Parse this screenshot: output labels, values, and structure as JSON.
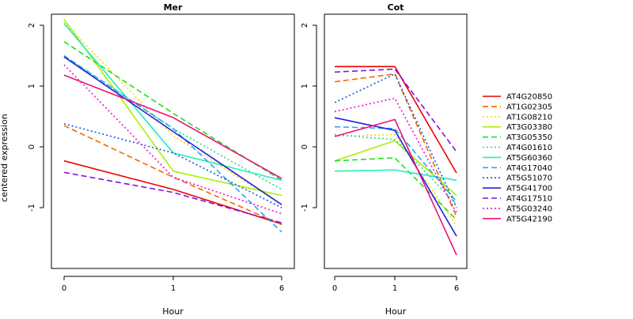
{
  "ylabel": "centered expression",
  "chart_data": [
    {
      "type": "line",
      "title": "Mer",
      "xlabel": "Hour",
      "x": [
        0,
        1,
        6
      ],
      "ylim": [
        -2,
        2.2
      ],
      "yticks": [
        -1,
        0,
        1,
        2
      ],
      "grid": false,
      "series": [
        {
          "name": "AT4G20850",
          "color": "#ee0000",
          "dash": "solid",
          "values": [
            -0.23,
            -0.7,
            -1.27
          ]
        },
        {
          "name": "AT1G02305",
          "color": "#ee6a00",
          "dash": "dashed",
          "values": [
            0.35,
            -0.5,
            -1.28
          ]
        },
        {
          "name": "AT1G08210",
          "color": "#ffd400",
          "dash": "dotted",
          "values": [
            2.05,
            0.18,
            -0.95
          ]
        },
        {
          "name": "AT3G03380",
          "color": "#aaee00",
          "dash": "solid",
          "values": [
            2.1,
            -0.4,
            -0.8
          ]
        },
        {
          "name": "AT3G05350",
          "color": "#22dd22",
          "dash": "dashed",
          "values": [
            1.73,
            0.55,
            -0.55
          ]
        },
        {
          "name": "AT4G01610",
          "color": "#22dd77",
          "dash": "dotted",
          "values": [
            1.5,
            0.3,
            -0.7
          ]
        },
        {
          "name": "AT5G60360",
          "color": "#22eebb",
          "dash": "solid",
          "values": [
            2.03,
            -0.1,
            -0.55
          ]
        },
        {
          "name": "AT4G17040",
          "color": "#22aaee",
          "dash": "dashed",
          "values": [
            1.5,
            0.3,
            -1.4
          ]
        },
        {
          "name": "AT5G51070",
          "color": "#1155dd",
          "dash": "dotted",
          "values": [
            0.38,
            -0.1,
            -1.0
          ]
        },
        {
          "name": "AT5G41700",
          "color": "#2222dd",
          "dash": "solid",
          "values": [
            1.48,
            0.25,
            -0.95
          ]
        },
        {
          "name": "AT4G17510",
          "color": "#8811dd",
          "dash": "dashed",
          "values": [
            -0.42,
            -0.75,
            -1.25
          ]
        },
        {
          "name": "AT5G03240",
          "color": "#ee11cc",
          "dash": "dotted",
          "values": [
            1.35,
            -0.5,
            -1.1
          ]
        },
        {
          "name": "AT5G42190",
          "color": "#ee1177",
          "dash": "solid",
          "values": [
            1.18,
            0.48,
            -0.52
          ]
        }
      ]
    },
    {
      "type": "line",
      "title": "Cot",
      "xlabel": "Hour",
      "x": [
        0,
        1,
        6
      ],
      "ylim": [
        -2,
        2.2
      ],
      "yticks": [
        -1,
        0,
        1,
        2
      ],
      "grid": false,
      "series": [
        {
          "name": "AT4G20850",
          "color": "#ee0000",
          "dash": "solid",
          "values": [
            1.32,
            1.32,
            -0.43
          ]
        },
        {
          "name": "AT1G02305",
          "color": "#ee6a00",
          "dash": "dashed",
          "values": [
            1.07,
            1.2,
            -1.15
          ]
        },
        {
          "name": "AT1G08210",
          "color": "#ffd400",
          "dash": "dotted",
          "values": [
            0.18,
            0.2,
            -1.3
          ]
        },
        {
          "name": "AT3G03380",
          "color": "#aaee00",
          "dash": "solid",
          "values": [
            -0.23,
            0.1,
            -0.8
          ]
        },
        {
          "name": "AT3G05350",
          "color": "#22dd22",
          "dash": "dashed",
          "values": [
            -0.23,
            -0.18,
            -1.2
          ]
        },
        {
          "name": "AT4G01610",
          "color": "#22dd77",
          "dash": "dotted",
          "values": [
            0.2,
            0.12,
            -0.95
          ]
        },
        {
          "name": "AT5G60360",
          "color": "#22eebb",
          "dash": "solid",
          "values": [
            -0.4,
            -0.38,
            -0.55
          ]
        },
        {
          "name": "AT4G17040",
          "color": "#22aaee",
          "dash": "dashed",
          "values": [
            0.33,
            0.3,
            -0.9
          ]
        },
        {
          "name": "AT5G51070",
          "color": "#1155dd",
          "dash": "dotted",
          "values": [
            0.73,
            1.2,
            -1.0
          ]
        },
        {
          "name": "AT5G41700",
          "color": "#2222dd",
          "dash": "solid",
          "values": [
            0.48,
            0.27,
            -1.47
          ]
        },
        {
          "name": "AT4G17510",
          "color": "#8811dd",
          "dash": "dashed",
          "values": [
            1.23,
            1.28,
            -0.08
          ]
        },
        {
          "name": "AT5G03240",
          "color": "#ee11cc",
          "dash": "dotted",
          "values": [
            0.58,
            0.8,
            -1.08
          ]
        },
        {
          "name": "AT5G42190",
          "color": "#ee1177",
          "dash": "solid",
          "values": [
            0.17,
            0.45,
            -1.78
          ]
        }
      ]
    }
  ],
  "legend": {
    "placement": "right",
    "entries": [
      {
        "label": "AT4G20850",
        "color": "#ee0000",
        "dash": "solid"
      },
      {
        "label": "AT1G02305",
        "color": "#ee6a00",
        "dash": "dashed"
      },
      {
        "label": "AT1G08210",
        "color": "#ffd400",
        "dash": "dotted"
      },
      {
        "label": "AT3G03380",
        "color": "#aaee00",
        "dash": "solid"
      },
      {
        "label": "AT3G05350",
        "color": "#22dd22",
        "dash": "dashed"
      },
      {
        "label": "AT4G01610",
        "color": "#22dd77",
        "dash": "dotted"
      },
      {
        "label": "AT5G60360",
        "color": "#22eebb",
        "dash": "solid"
      },
      {
        "label": "AT4G17040",
        "color": "#22aaee",
        "dash": "dashed"
      },
      {
        "label": "AT5G51070",
        "color": "#1155dd",
        "dash": "dotted"
      },
      {
        "label": "AT5G41700",
        "color": "#2222dd",
        "dash": "solid"
      },
      {
        "label": "AT4G17510",
        "color": "#8811dd",
        "dash": "dashed"
      },
      {
        "label": "AT5G03240",
        "color": "#ee11cc",
        "dash": "dotted"
      },
      {
        "label": "AT5G42190",
        "color": "#ee1177",
        "dash": "solid"
      }
    ]
  }
}
